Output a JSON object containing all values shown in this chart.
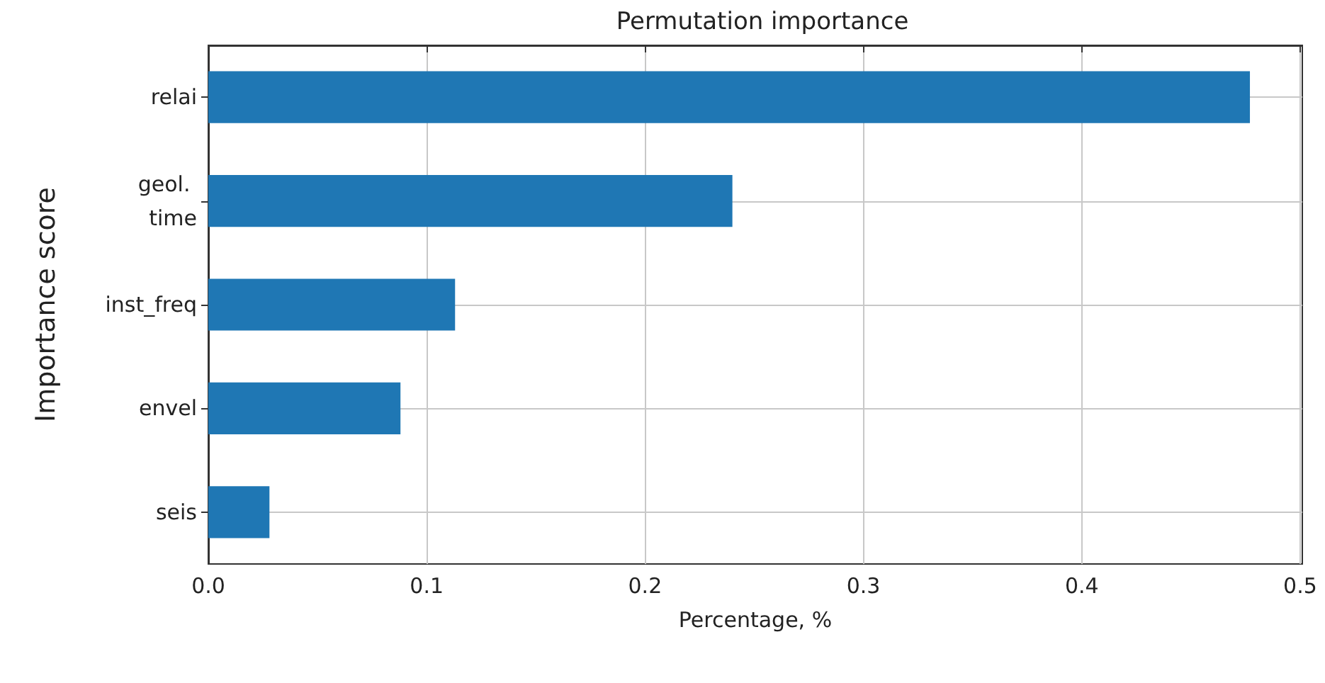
{
  "chart_data": {
    "type": "bar",
    "orientation": "horizontal",
    "title": "Permutation importance",
    "xlabel": "Percentage, %",
    "ylabel": "Importance score",
    "categories": [
      "relai",
      "geol. time",
      "inst_freq",
      "envel",
      "seis"
    ],
    "values": [
      0.477,
      0.24,
      0.113,
      0.088,
      0.028
    ],
    "color": "#1f77b4",
    "xlim": [
      0,
      0.501
    ],
    "xticks": [
      {
        "value": 0,
        "label": "0.0"
      },
      0.1,
      0.2,
      0.3,
      0.4,
      0.5
    ],
    "grid": true
  }
}
